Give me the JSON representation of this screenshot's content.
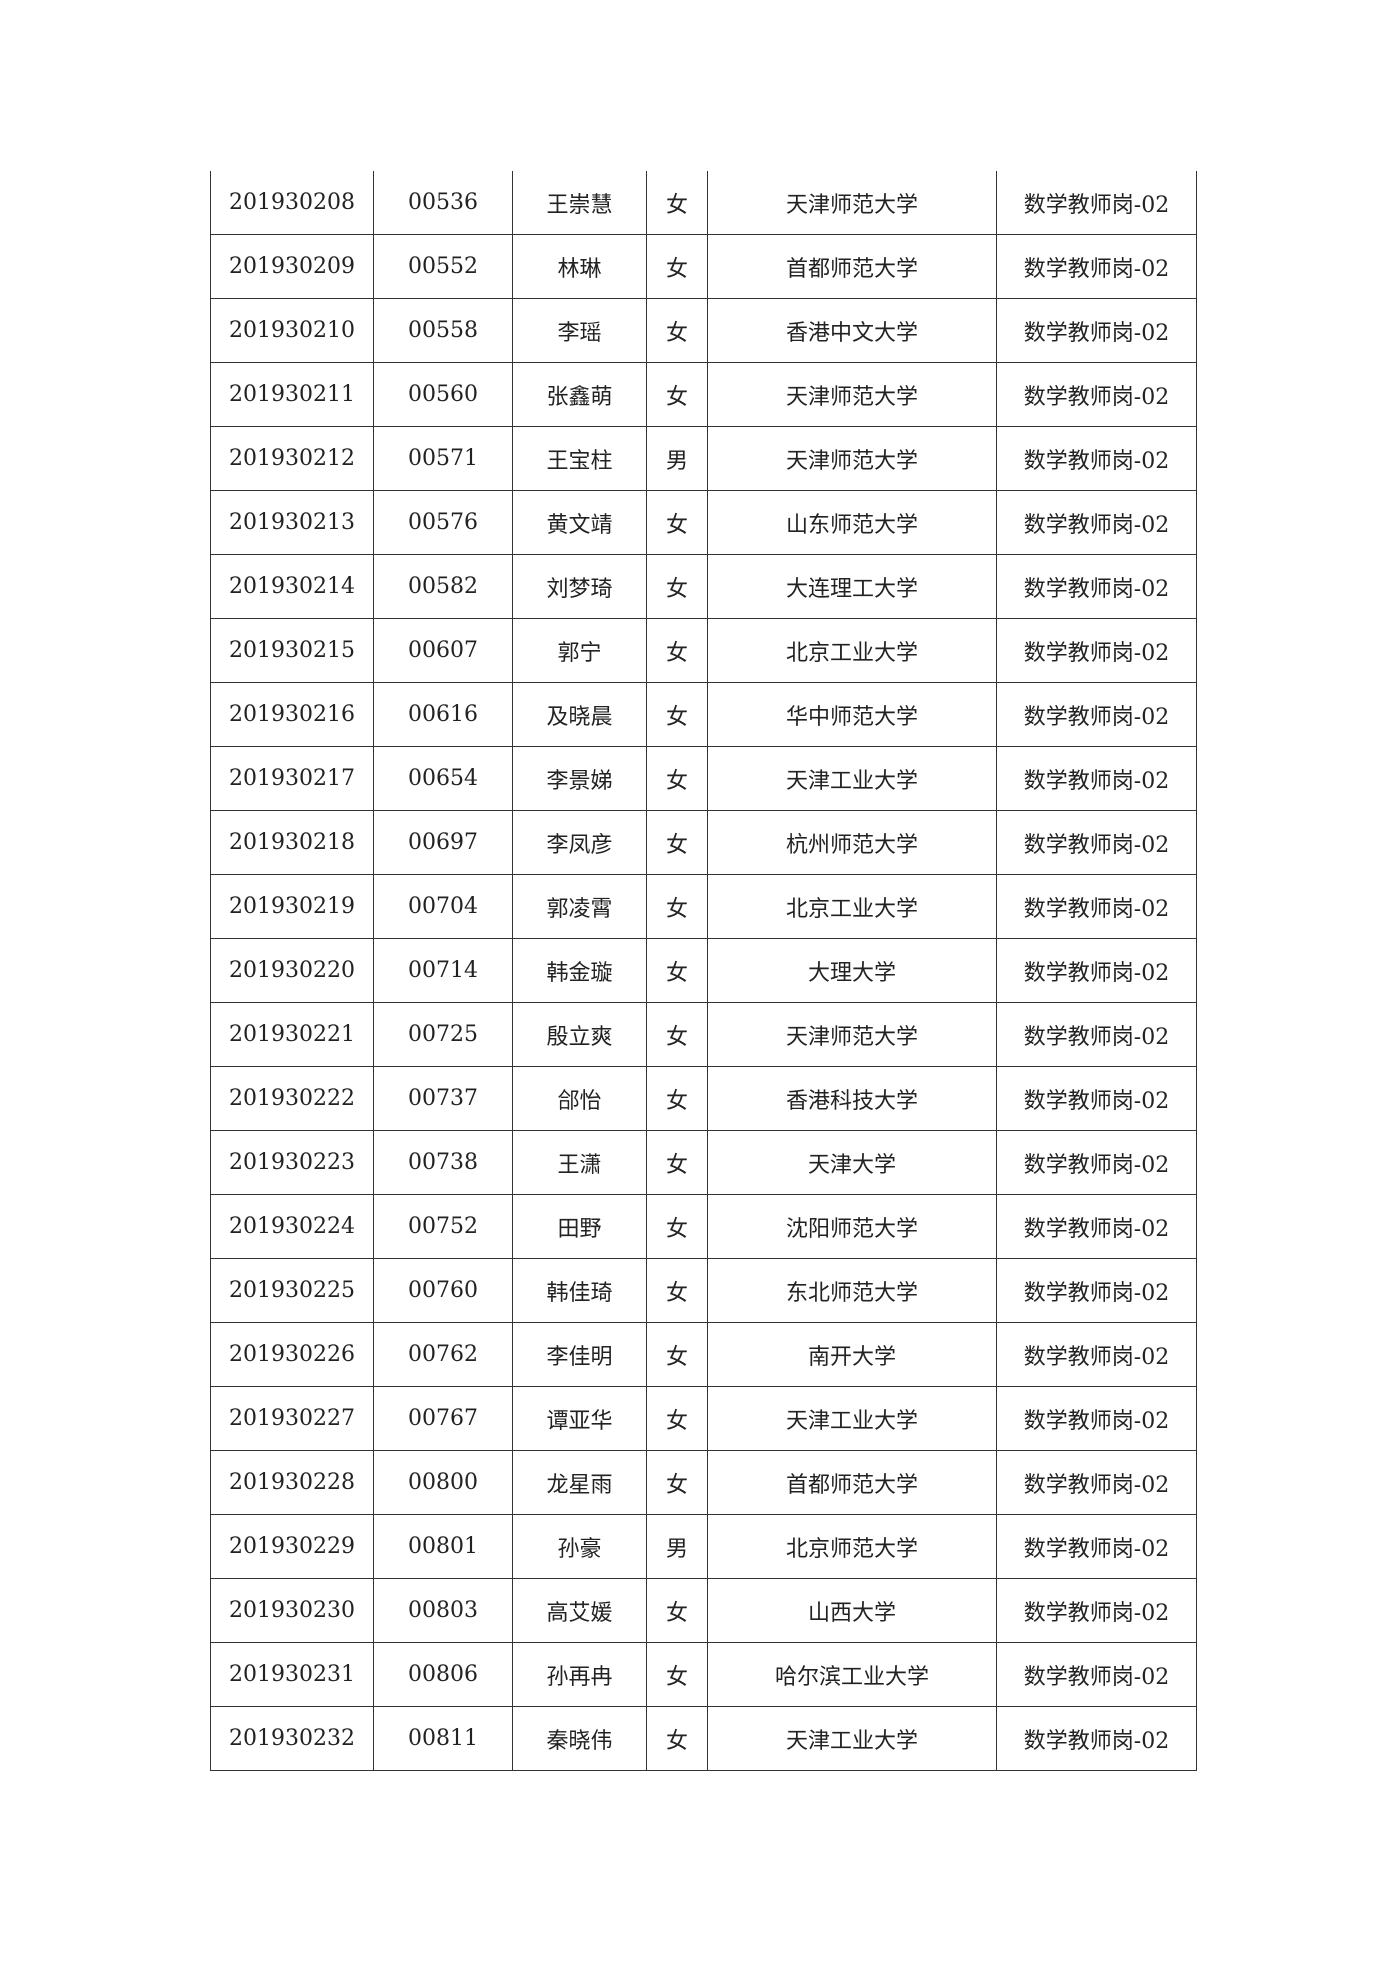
{
  "table": {
    "rows": [
      [
        "201930208",
        "00536",
        "王崇慧",
        "女",
        "天津师范大学",
        "数学教师岗-02"
      ],
      [
        "201930209",
        "00552",
        "林琳",
        "女",
        "首都师范大学",
        "数学教师岗-02"
      ],
      [
        "201930210",
        "00558",
        "李瑶",
        "女",
        "香港中文大学",
        "数学教师岗-02"
      ],
      [
        "201930211",
        "00560",
        "张鑫萌",
        "女",
        "天津师范大学",
        "数学教师岗-02"
      ],
      [
        "201930212",
        "00571",
        "王宝柱",
        "男",
        "天津师范大学",
        "数学教师岗-02"
      ],
      [
        "201930213",
        "00576",
        "黄文靖",
        "女",
        "山东师范大学",
        "数学教师岗-02"
      ],
      [
        "201930214",
        "00582",
        "刘梦琦",
        "女",
        "大连理工大学",
        "数学教师岗-02"
      ],
      [
        "201930215",
        "00607",
        "郭宁",
        "女",
        "北京工业大学",
        "数学教师岗-02"
      ],
      [
        "201930216",
        "00616",
        "及晓晨",
        "女",
        "华中师范大学",
        "数学教师岗-02"
      ],
      [
        "201930217",
        "00654",
        "李景娣",
        "女",
        "天津工业大学",
        "数学教师岗-02"
      ],
      [
        "201930218",
        "00697",
        "李凤彦",
        "女",
        "杭州师范大学",
        "数学教师岗-02"
      ],
      [
        "201930219",
        "00704",
        "郭凌霄",
        "女",
        "北京工业大学",
        "数学教师岗-02"
      ],
      [
        "201930220",
        "00714",
        "韩金璇",
        "女",
        "大理大学",
        "数学教师岗-02"
      ],
      [
        "201930221",
        "00725",
        "殷立爽",
        "女",
        "天津师范大学",
        "数学教师岗-02"
      ],
      [
        "201930222",
        "00737",
        "郃怡",
        "女",
        "香港科技大学",
        "数学教师岗-02"
      ],
      [
        "201930223",
        "00738",
        "王潇",
        "女",
        "天津大学",
        "数学教师岗-02"
      ],
      [
        "201930224",
        "00752",
        "田野",
        "女",
        "沈阳师范大学",
        "数学教师岗-02"
      ],
      [
        "201930225",
        "00760",
        "韩佳琦",
        "女",
        "东北师范大学",
        "数学教师岗-02"
      ],
      [
        "201930226",
        "00762",
        "李佳明",
        "女",
        "南开大学",
        "数学教师岗-02"
      ],
      [
        "201930227",
        "00767",
        "谭亚华",
        "女",
        "天津工业大学",
        "数学教师岗-02"
      ],
      [
        "201930228",
        "00800",
        "龙星雨",
        "女",
        "首都师范大学",
        "数学教师岗-02"
      ],
      [
        "201930229",
        "00801",
        "孙豪",
        "男",
        "北京师范大学",
        "数学教师岗-02"
      ],
      [
        "201930230",
        "00803",
        "高艾媛",
        "女",
        "山西大学",
        "数学教师岗-02"
      ],
      [
        "201930231",
        "00806",
        "孙再冉",
        "女",
        "哈尔滨工业大学",
        "数学教师岗-02"
      ],
      [
        "201930232",
        "00811",
        "秦晓伟",
        "女",
        "天津工业大学",
        "数学教师岗-02"
      ]
    ]
  }
}
